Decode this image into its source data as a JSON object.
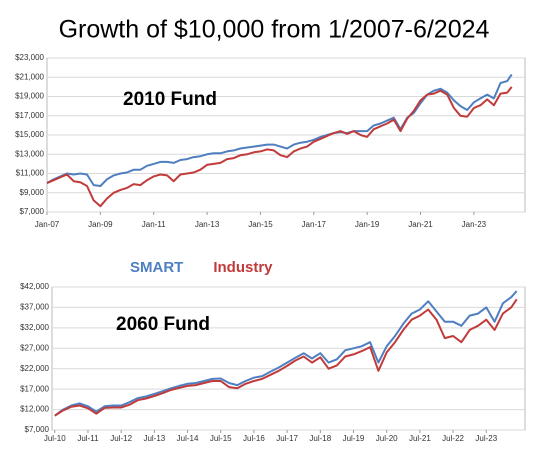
{
  "title": "Growth of $10,000 from 1/2007-6/2024",
  "chart_data": [
    {
      "type": "line",
      "annotation": "2010 Fund",
      "x": [
        "Jan-07",
        "Apr-07",
        "Jul-07",
        "Oct-07",
        "Jan-08",
        "Apr-08",
        "Jul-08",
        "Oct-08",
        "Jan-09",
        "Apr-09",
        "Jul-09",
        "Oct-09",
        "Jan-10",
        "Apr-10",
        "Jul-10",
        "Oct-10",
        "Jan-11",
        "Apr-11",
        "Jul-11",
        "Oct-11",
        "Jan-12",
        "Apr-12",
        "Jul-12",
        "Oct-12",
        "Jan-13",
        "Apr-13",
        "Jul-13",
        "Oct-13",
        "Jan-14",
        "Apr-14",
        "Jul-14",
        "Oct-14",
        "Jan-15",
        "Apr-15",
        "Jul-15",
        "Oct-15",
        "Jan-16",
        "Apr-16",
        "Jul-16",
        "Oct-16",
        "Jan-17",
        "Apr-17",
        "Jul-17",
        "Oct-17",
        "Jan-18",
        "Apr-18",
        "Jul-18",
        "Oct-18",
        "Jan-19",
        "Apr-19",
        "Jul-19",
        "Oct-19",
        "Jan-20",
        "Apr-20",
        "Jul-20",
        "Oct-20",
        "Jan-21",
        "Apr-21",
        "Jul-21",
        "Oct-21",
        "Jan-22",
        "Apr-22",
        "Jul-22",
        "Oct-22",
        "Jan-23",
        "Apr-23",
        "Jul-23",
        "Oct-23",
        "Jan-24",
        "Apr-24",
        "Jun-24"
      ],
      "series": [
        {
          "color": "#4f7fc0",
          "values": [
            10000,
            10400,
            10700,
            11000,
            10900,
            11000,
            10900,
            9800,
            9700,
            10400,
            10800,
            11000,
            11100,
            11400,
            11400,
            11800,
            12000,
            12200,
            12200,
            12100,
            12400,
            12500,
            12700,
            12800,
            13000,
            13100,
            13100,
            13300,
            13400,
            13600,
            13700,
            13800,
            13900,
            14000,
            14000,
            13800,
            13600,
            14000,
            14200,
            14300,
            14500,
            14800,
            15000,
            15200,
            15300,
            15200,
            15400,
            15400,
            15400,
            16000,
            16200,
            16500,
            16800,
            15600,
            16800,
            17300,
            18300,
            19200,
            19600,
            19800,
            19400,
            18600,
            18000,
            17600,
            18400,
            18800,
            19200,
            18800,
            20400,
            20600,
            21300
          ]
        },
        {
          "color": "#c23b3b",
          "values": [
            10000,
            10300,
            10600,
            10900,
            10200,
            10100,
            9700,
            8200,
            7600,
            8400,
            9000,
            9300,
            9500,
            9900,
            9800,
            10300,
            10700,
            10900,
            10800,
            10200,
            10900,
            11000,
            11100,
            11400,
            11900,
            12000,
            12100,
            12500,
            12600,
            12900,
            13000,
            13200,
            13300,
            13500,
            13400,
            12900,
            12700,
            13300,
            13600,
            13800,
            14300,
            14600,
            14900,
            15200,
            15400,
            15100,
            15400,
            15000,
            14800,
            15600,
            15900,
            16200,
            16600,
            15400,
            16700,
            17500,
            18600,
            19200,
            19300,
            19600,
            19200,
            17800,
            17000,
            16900,
            17800,
            18100,
            18700,
            18100,
            19300,
            19400,
            20000
          ]
        }
      ],
      "xlim": [
        "Jan-07",
        "Dec-24"
      ],
      "xticks": [
        "Jan-07",
        "Jan-09",
        "Jan-11",
        "Jan-13",
        "Jan-15",
        "Jan-17",
        "Jan-19",
        "Jan-21",
        "Jan-23"
      ],
      "ylim": [
        7000,
        23000
      ],
      "yticks": [
        {
          "value": 7000,
          "label": "$7,000"
        },
        {
          "value": 9000,
          "label": "$9,000"
        },
        {
          "value": 11000,
          "label": "$11,000"
        },
        {
          "value": 13000,
          "label": "$13,000"
        },
        {
          "value": 15000,
          "label": "$15,000"
        },
        {
          "value": 17000,
          "label": "$17,000"
        },
        {
          "value": 19000,
          "label": "$19,000"
        },
        {
          "value": 21000,
          "label": "$21,000"
        },
        {
          "value": 23000,
          "label": "$23,000"
        }
      ],
      "grid": true
    },
    {
      "type": "line",
      "annotation": "2060 Fund",
      "x": [
        "Jul-10",
        "Oct-10",
        "Jan-11",
        "Apr-11",
        "Jul-11",
        "Oct-11",
        "Jan-12",
        "Apr-12",
        "Jul-12",
        "Oct-12",
        "Jan-13",
        "Apr-13",
        "Jul-13",
        "Oct-13",
        "Jan-14",
        "Apr-14",
        "Jul-14",
        "Oct-14",
        "Jan-15",
        "Apr-15",
        "Jul-15",
        "Oct-15",
        "Jan-16",
        "Apr-16",
        "Jul-16",
        "Oct-16",
        "Jan-17",
        "Apr-17",
        "Jul-17",
        "Oct-17",
        "Jan-18",
        "Apr-18",
        "Jul-18",
        "Oct-18",
        "Jan-19",
        "Apr-19",
        "Jul-19",
        "Oct-19",
        "Jan-20",
        "Apr-20",
        "Jul-20",
        "Oct-20",
        "Jan-21",
        "Apr-21",
        "Jul-21",
        "Oct-21",
        "Jan-22",
        "Apr-22",
        "Jul-22",
        "Oct-22",
        "Jan-23",
        "Apr-23",
        "Jul-23",
        "Oct-23",
        "Jan-24",
        "Apr-24",
        "Jun-24"
      ],
      "series": [
        {
          "name": "SMART",
          "color": "#4f7fc0",
          "values": [
            10500,
            12000,
            13000,
            13500,
            12800,
            11500,
            12800,
            13000,
            13000,
            13800,
            14800,
            15200,
            15800,
            16500,
            17200,
            17800,
            18300,
            18500,
            19000,
            19500,
            19600,
            18500,
            18000,
            19000,
            19800,
            20200,
            21300,
            22300,
            23500,
            24700,
            25800,
            24500,
            25800,
            23500,
            24300,
            26500,
            27000,
            27500,
            28500,
            23500,
            27500,
            30000,
            33000,
            35500,
            36500,
            38500,
            36000,
            33500,
            33500,
            32500,
            35000,
            35500,
            37000,
            33500,
            38000,
            39500,
            41000
          ]
        },
        {
          "name": "Industry",
          "color": "#c23b3b",
          "values": [
            10500,
            11800,
            12700,
            13000,
            12300,
            11000,
            12400,
            12500,
            12500,
            13200,
            14300,
            14700,
            15300,
            16000,
            16800,
            17300,
            17800,
            18000,
            18500,
            19000,
            19000,
            17500,
            17200,
            18300,
            19000,
            19500,
            20500,
            21500,
            22700,
            24000,
            25000,
            23500,
            24800,
            22000,
            22800,
            25000,
            25500,
            26300,
            27300,
            21500,
            26000,
            28500,
            31500,
            34000,
            35000,
            36500,
            34000,
            29500,
            30000,
            28500,
            31500,
            32500,
            34000,
            31500,
            35500,
            37000,
            39000
          ]
        }
      ],
      "xlim": [
        "Jun-10",
        "Sep-24"
      ],
      "xticks": [
        "Jul-10",
        "Jul-11",
        "Jul-12",
        "Jul-13",
        "Jul-14",
        "Jul-15",
        "Jul-16",
        "Jul-17",
        "Jul-18",
        "Jul-19",
        "Jul-20",
        "Jul-21",
        "Jul-22",
        "Jul-23"
      ],
      "ylim": [
        7000,
        42000
      ],
      "yticks": [
        {
          "value": 7000,
          "label": "$7,000"
        },
        {
          "value": 12000,
          "label": "$12,000"
        },
        {
          "value": 17000,
          "label": "$17,000"
        },
        {
          "value": 22000,
          "label": "$22,000"
        },
        {
          "value": 27000,
          "label": "$27,000"
        },
        {
          "value": 32000,
          "label": "$32,000"
        },
        {
          "value": 37000,
          "label": "$37,000"
        },
        {
          "value": 42000,
          "label": "$42,000"
        }
      ],
      "grid": true
    }
  ]
}
